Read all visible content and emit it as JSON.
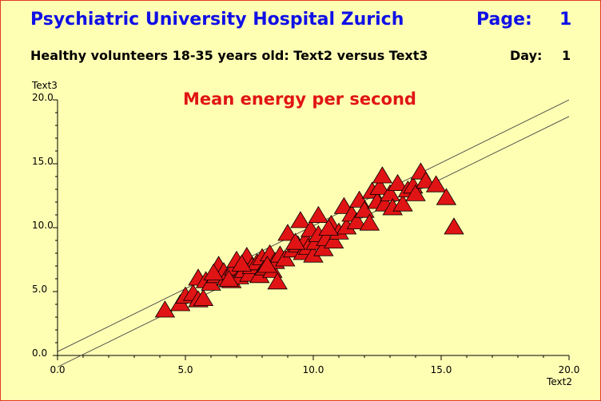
{
  "header": {
    "title": "Psychiatric University Hospital Zurich",
    "page_label": "Page:",
    "page_number": "1",
    "subtitle": "Healthy volunteers 18-35 years old: Text2 versus Text3",
    "day_label": "Day:",
    "day_number": "1"
  },
  "colors": {
    "background": "#ffffb4",
    "marker_fill": "#e01414",
    "marker_stroke": "#000000",
    "header_blue": "#1010e6",
    "title_red": "#e01414"
  },
  "chart_data": {
    "type": "scatter",
    "title": "Mean energy per second",
    "xlabel": "Text2",
    "ylabel": "Text3",
    "xlim": [
      0,
      20
    ],
    "ylim": [
      0,
      20
    ],
    "xticks": [
      "0.0",
      "5.0",
      "10.0",
      "15.0",
      "20.0"
    ],
    "yticks": [
      "0.0",
      "5.0",
      "10.0",
      "15.0",
      "20.0"
    ],
    "marker": "triangle",
    "grid": false,
    "points": [
      [
        4.2,
        3.5
      ],
      [
        4.8,
        4.0
      ],
      [
        5.0,
        4.6
      ],
      [
        5.3,
        4.8
      ],
      [
        5.5,
        4.3
      ],
      [
        5.7,
        4.4
      ],
      [
        5.5,
        6.0
      ],
      [
        5.8,
        5.8
      ],
      [
        6.0,
        5.6
      ],
      [
        6.2,
        6.2
      ],
      [
        6.3,
        7.0
      ],
      [
        6.5,
        6.5
      ],
      [
        6.6,
        6.0
      ],
      [
        6.8,
        5.8
      ],
      [
        6.9,
        6.8
      ],
      [
        7.0,
        7.4
      ],
      [
        7.1,
        6.1
      ],
      [
        7.3,
        6.6
      ],
      [
        7.4,
        7.7
      ],
      [
        7.5,
        6.3
      ],
      [
        7.6,
        6.9
      ],
      [
        7.8,
        7.2
      ],
      [
        7.9,
        6.2
      ],
      [
        8.0,
        7.6
      ],
      [
        8.1,
        6.8
      ],
      [
        8.3,
        7.9
      ],
      [
        8.4,
        6.6
      ],
      [
        8.5,
        7.3
      ],
      [
        8.6,
        5.7
      ],
      [
        8.7,
        7.8
      ],
      [
        8.9,
        7.5
      ],
      [
        9.0,
        9.5
      ],
      [
        9.2,
        8.2
      ],
      [
        9.4,
        8.6
      ],
      [
        9.5,
        10.5
      ],
      [
        9.6,
        8.0
      ],
      [
        9.7,
        9.0
      ],
      [
        9.8,
        8.4
      ],
      [
        9.9,
        9.8
      ],
      [
        10.0,
        7.8
      ],
      [
        10.1,
        8.8
      ],
      [
        10.2,
        9.4
      ],
      [
        10.2,
        10.9
      ],
      [
        10.4,
        8.3
      ],
      [
        10.5,
        9.1
      ],
      [
        10.7,
        10.2
      ],
      [
        10.8,
        8.9
      ],
      [
        11.0,
        9.6
      ],
      [
        11.2,
        11.6
      ],
      [
        11.3,
        10.0
      ],
      [
        11.5,
        11.0
      ],
      [
        11.7,
        10.4
      ],
      [
        11.8,
        12.1
      ],
      [
        12.0,
        11.3
      ],
      [
        12.2,
        10.3
      ],
      [
        12.3,
        12.8
      ],
      [
        12.5,
        12.0
      ],
      [
        12.6,
        13.1
      ],
      [
        12.7,
        14.0
      ],
      [
        12.8,
        11.8
      ],
      [
        13.0,
        12.6
      ],
      [
        13.1,
        11.5
      ],
      [
        13.3,
        13.4
      ],
      [
        13.5,
        11.8
      ],
      [
        13.7,
        12.9
      ],
      [
        13.9,
        13.2
      ],
      [
        14.0,
        12.6
      ],
      [
        14.2,
        14.3
      ],
      [
        14.4,
        13.6
      ],
      [
        14.8,
        13.3
      ],
      [
        15.2,
        12.3
      ],
      [
        15.5,
        10.0
      ],
      [
        6.1,
        6.4
      ],
      [
        6.7,
        5.9
      ],
      [
        7.2,
        7.1
      ],
      [
        8.2,
        7.0
      ],
      [
        9.3,
        8.8
      ],
      [
        10.6,
        9.9
      ]
    ],
    "lines": [
      {
        "x": [
          0,
          20
        ],
        "y": [
          0.3,
          20.0
        ]
      },
      {
        "x": [
          0,
          20
        ],
        "y": [
          -0.9,
          18.7
        ]
      }
    ]
  }
}
